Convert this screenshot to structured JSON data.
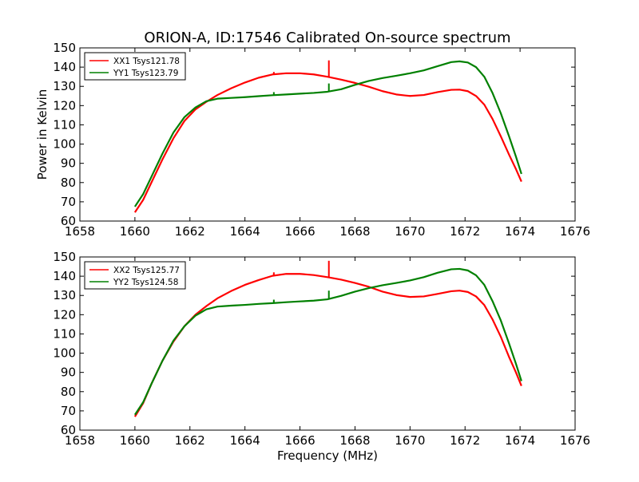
{
  "figure": {
    "title": "ORION-A, ID:17546 Calibrated On-source spectrum"
  },
  "chart_data": [
    {
      "type": "line",
      "title": "ORION-A, ID:17546 Calibrated On-source spectrum",
      "xlabel": "",
      "ylabel": "Power in Kelvin",
      "xlim": [
        1658,
        1676
      ],
      "ylim": [
        60,
        150
      ],
      "xticks": [
        "1658",
        "1660",
        "1662",
        "1664",
        "1666",
        "1668",
        "1670",
        "1672",
        "1674",
        "1676"
      ],
      "yticks": [
        "60",
        "70",
        "80",
        "90",
        "100",
        "110",
        "120",
        "130",
        "140",
        "150"
      ],
      "grid": false,
      "legend_position": "top-left",
      "series": [
        {
          "name": "XX1 Tsys121.78",
          "color": "#ff0000",
          "x": [
            1660.0,
            1660.3,
            1660.6,
            1661.0,
            1661.4,
            1661.8,
            1662.2,
            1662.6,
            1663.0,
            1663.5,
            1664.0,
            1664.5,
            1665.0,
            1665.5,
            1666.0,
            1666.5,
            1667.0,
            1667.5,
            1668.0,
            1668.5,
            1669.0,
            1669.5,
            1670.0,
            1670.5,
            1671.0,
            1671.5,
            1671.8,
            1672.1,
            1672.4,
            1672.7,
            1673.0,
            1673.3,
            1673.6,
            1673.85,
            1674.05
          ],
          "y": [
            64.5,
            71,
            80,
            92,
            103,
            112,
            118,
            122,
            125.5,
            129,
            132,
            134.5,
            136.2,
            136.8,
            136.8,
            136.2,
            135.0,
            133.5,
            131.8,
            129.8,
            127.5,
            125.8,
            125.0,
            125.5,
            127.0,
            128.2,
            128.3,
            127.5,
            125.0,
            120.5,
            113.0,
            104.0,
            94.5,
            87.0,
            80.5
          ],
          "spikes": [
            {
              "x": 1665.05,
              "y": 137.5
            },
            {
              "x": 1667.05,
              "y": 143.5
            }
          ]
        },
        {
          "name": "YY1 Tsys123.79",
          "color": "#008000",
          "x": [
            1660.0,
            1660.3,
            1660.6,
            1661.0,
            1661.4,
            1661.8,
            1662.2,
            1662.6,
            1663.0,
            1663.5,
            1664.0,
            1664.5,
            1665.0,
            1665.5,
            1666.0,
            1666.5,
            1667.0,
            1667.5,
            1668.0,
            1668.5,
            1669.0,
            1669.5,
            1670.0,
            1670.5,
            1671.0,
            1671.5,
            1671.8,
            1672.1,
            1672.4,
            1672.7,
            1673.0,
            1673.3,
            1673.6,
            1673.85,
            1674.05
          ],
          "y": [
            67.5,
            74,
            83,
            95,
            106,
            114,
            119,
            122.3,
            123.6,
            124.0,
            124.4,
            124.9,
            125.4,
            125.8,
            126.2,
            126.6,
            127.2,
            128.5,
            130.8,
            132.8,
            134.3,
            135.5,
            136.8,
            138.3,
            140.5,
            142.6,
            143.0,
            142.4,
            140.0,
            135.0,
            126.5,
            116.0,
            104.0,
            93.5,
            84.5
          ],
          "spikes": [
            {
              "x": 1665.05,
              "y": 127.0
            },
            {
              "x": 1667.05,
              "y": 131.5
            }
          ]
        }
      ]
    },
    {
      "type": "line",
      "title": "",
      "xlabel": "Frequency (MHz)",
      "ylabel": "",
      "xlim": [
        1658,
        1676
      ],
      "ylim": [
        60,
        150
      ],
      "xticks": [
        "1658",
        "1660",
        "1662",
        "1664",
        "1666",
        "1668",
        "1670",
        "1672",
        "1674",
        "1676"
      ],
      "yticks": [
        "60",
        "70",
        "80",
        "90",
        "100",
        "110",
        "120",
        "130",
        "140",
        "150"
      ],
      "grid": false,
      "legend_position": "top-left",
      "series": [
        {
          "name": "XX2 Tsys125.77",
          "color": "#ff0000",
          "x": [
            1660.0,
            1660.3,
            1660.6,
            1661.0,
            1661.4,
            1661.8,
            1662.2,
            1662.6,
            1663.0,
            1663.5,
            1664.0,
            1664.5,
            1665.0,
            1665.5,
            1666.0,
            1666.5,
            1667.0,
            1667.5,
            1668.0,
            1668.5,
            1669.0,
            1669.5,
            1670.0,
            1670.5,
            1671.0,
            1671.5,
            1671.8,
            1672.1,
            1672.4,
            1672.7,
            1673.0,
            1673.3,
            1673.6,
            1673.85,
            1674.05
          ],
          "y": [
            67.0,
            74,
            84,
            96,
            106,
            114,
            120,
            124.5,
            128.5,
            132.3,
            135.5,
            138.0,
            140.2,
            141.2,
            141.2,
            140.6,
            139.5,
            138.2,
            136.5,
            134.5,
            132.0,
            130.2,
            129.2,
            129.5,
            130.8,
            132.2,
            132.5,
            131.8,
            129.5,
            125.0,
            117.5,
            108.5,
            98.0,
            90.0,
            83.0
          ],
          "spikes": [
            {
              "x": 1665.05,
              "y": 142.0
            },
            {
              "x": 1667.05,
              "y": 148.0
            }
          ]
        },
        {
          "name": "YY2 Tsys124.58",
          "color": "#008000",
          "x": [
            1660.0,
            1660.3,
            1660.6,
            1661.0,
            1661.4,
            1661.8,
            1662.2,
            1662.6,
            1663.0,
            1663.5,
            1664.0,
            1664.5,
            1665.0,
            1665.5,
            1666.0,
            1666.5,
            1667.0,
            1667.5,
            1668.0,
            1668.5,
            1669.0,
            1669.5,
            1670.0,
            1670.5,
            1671.0,
            1671.5,
            1671.8,
            1672.1,
            1672.4,
            1672.7,
            1673.0,
            1673.3,
            1673.6,
            1673.85,
            1674.05
          ],
          "y": [
            68.0,
            74.5,
            84,
            96,
            106.5,
            114,
            119.5,
            122.8,
            124.2,
            124.7,
            125.1,
            125.6,
            126.0,
            126.5,
            126.9,
            127.3,
            128.0,
            129.8,
            132.0,
            133.8,
            135.3,
            136.5,
            137.8,
            139.5,
            141.8,
            143.6,
            143.8,
            143.0,
            140.5,
            135.5,
            127.0,
            117.0,
            105.0,
            94.5,
            85.5
          ],
          "spikes": [
            {
              "x": 1665.05,
              "y": 127.8
            },
            {
              "x": 1667.05,
              "y": 132.5
            }
          ]
        }
      ]
    }
  ]
}
